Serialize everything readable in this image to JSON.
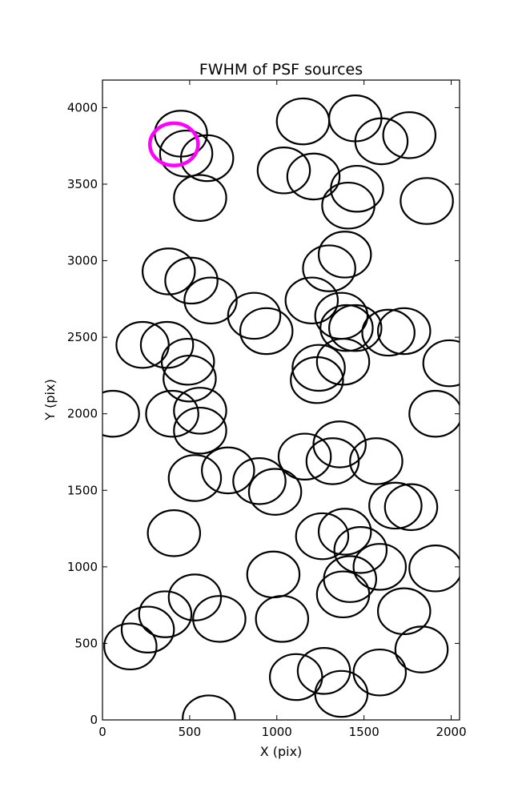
{
  "chart_data": {
    "type": "scatter",
    "title": "FWHM of PSF sources",
    "xlabel": "X (pix)",
    "ylabel": "Y (pix)",
    "xlim": [
      0,
      2048
    ],
    "ylim": [
      0,
      4180
    ],
    "xticks": [
      0,
      500,
      1000,
      1500,
      2000
    ],
    "yticks": [
      0,
      500,
      1000,
      1500,
      2000,
      2500,
      3000,
      3500,
      4000
    ],
    "circle_diameter": 300,
    "grid": false,
    "marker": "open-circle",
    "default_color": "#000000",
    "highlight_color": "#ff00ff",
    "highlight": {
      "x": 410,
      "y": 3760
    },
    "sources": [
      {
        "x": 450,
        "y": 3830
      },
      {
        "x": 480,
        "y": 3700
      },
      {
        "x": 600,
        "y": 3670
      },
      {
        "x": 560,
        "y": 3410
      },
      {
        "x": 1150,
        "y": 3910
      },
      {
        "x": 1450,
        "y": 3930
      },
      {
        "x": 1600,
        "y": 3780
      },
      {
        "x": 1760,
        "y": 3820
      },
      {
        "x": 1040,
        "y": 3590
      },
      {
        "x": 1210,
        "y": 3550
      },
      {
        "x": 1460,
        "y": 3470
      },
      {
        "x": 1410,
        "y": 3360
      },
      {
        "x": 1860,
        "y": 3390
      },
      {
        "x": 380,
        "y": 2930
      },
      {
        "x": 510,
        "y": 2870
      },
      {
        "x": 620,
        "y": 2740
      },
      {
        "x": 1390,
        "y": 3040
      },
      {
        "x": 1300,
        "y": 2950
      },
      {
        "x": 1200,
        "y": 2740
      },
      {
        "x": 870,
        "y": 2640
      },
      {
        "x": 940,
        "y": 2540
      },
      {
        "x": 1370,
        "y": 2640
      },
      {
        "x": 1400,
        "y": 2560
      },
      {
        "x": 1450,
        "y": 2560
      },
      {
        "x": 1640,
        "y": 2530
      },
      {
        "x": 1730,
        "y": 2540
      },
      {
        "x": 230,
        "y": 2450
      },
      {
        "x": 370,
        "y": 2450
      },
      {
        "x": 490,
        "y": 2340
      },
      {
        "x": 500,
        "y": 2230
      },
      {
        "x": 1380,
        "y": 2340
      },
      {
        "x": 1240,
        "y": 2300
      },
      {
        "x": 1230,
        "y": 2220
      },
      {
        "x": 1990,
        "y": 2330
      },
      {
        "x": 60,
        "y": 2000
      },
      {
        "x": 400,
        "y": 2000
      },
      {
        "x": 560,
        "y": 2020
      },
      {
        "x": 560,
        "y": 1890
      },
      {
        "x": 1910,
        "y": 2000
      },
      {
        "x": 1160,
        "y": 1720
      },
      {
        "x": 1360,
        "y": 1800
      },
      {
        "x": 1320,
        "y": 1690
      },
      {
        "x": 1570,
        "y": 1690
      },
      {
        "x": 720,
        "y": 1630
      },
      {
        "x": 530,
        "y": 1580
      },
      {
        "x": 900,
        "y": 1560
      },
      {
        "x": 990,
        "y": 1490
      },
      {
        "x": 1680,
        "y": 1400
      },
      {
        "x": 1770,
        "y": 1390
      },
      {
        "x": 410,
        "y": 1220
      },
      {
        "x": 1390,
        "y": 1230
      },
      {
        "x": 1260,
        "y": 1200
      },
      {
        "x": 1480,
        "y": 1110
      },
      {
        "x": 1590,
        "y": 1000
      },
      {
        "x": 1910,
        "y": 990
      },
      {
        "x": 980,
        "y": 950
      },
      {
        "x": 1420,
        "y": 920
      },
      {
        "x": 1380,
        "y": 820
      },
      {
        "x": 1730,
        "y": 710
      },
      {
        "x": 530,
        "y": 800
      },
      {
        "x": 360,
        "y": 690
      },
      {
        "x": 260,
        "y": 590
      },
      {
        "x": 160,
        "y": 480
      },
      {
        "x": 670,
        "y": 660
      },
      {
        "x": 1030,
        "y": 660
      },
      {
        "x": 1830,
        "y": 460
      },
      {
        "x": 1270,
        "y": 320
      },
      {
        "x": 1590,
        "y": 310
      },
      {
        "x": 1110,
        "y": 280
      },
      {
        "x": 1370,
        "y": 170
      },
      {
        "x": 610,
        "y": 10
      }
    ]
  }
}
